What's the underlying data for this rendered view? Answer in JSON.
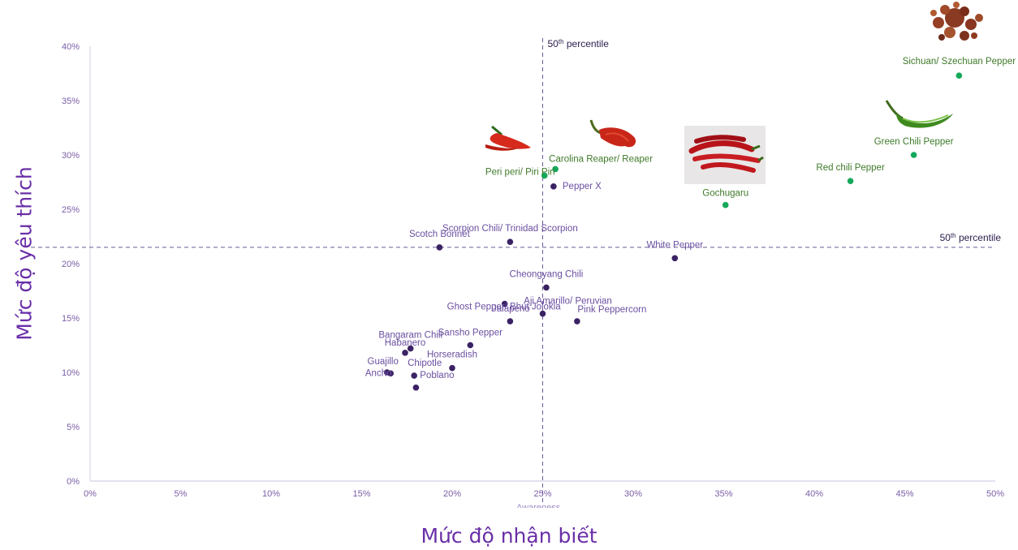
{
  "chart_data": {
    "type": "scatter",
    "xlabel": "Mức độ nhận biết",
    "xlabel_cut": "Awareness",
    "ylabel": "Mức độ yêu thích",
    "xlim": [
      0,
      50
    ],
    "ylim": [
      0,
      40
    ],
    "x_ticks": [
      "0%",
      "5%",
      "10%",
      "15%",
      "20%",
      "25%",
      "30%",
      "35%",
      "40%",
      "45%",
      "50%"
    ],
    "y_ticks": [
      "0%",
      "5%",
      "10%",
      "15%",
      "20%",
      "25%",
      "30%",
      "35%",
      "40%"
    ],
    "reference_lines": {
      "vertical_x": 25,
      "horizontal_y": 21.5,
      "label": "50th percentile"
    },
    "colors": {
      "purple": "#3a2264",
      "green": "#14a85a",
      "ref_line": "#6a5a9a"
    },
    "points": [
      {
        "label": "Sichuan/ Szechuan Pepper",
        "x": 48.0,
        "y": 37.3,
        "group": "green"
      },
      {
        "label": "Green Chili Pepper",
        "x": 45.5,
        "y": 30.0,
        "group": "green"
      },
      {
        "label": "Red chili Pepper",
        "x": 42.0,
        "y": 27.6,
        "group": "green"
      },
      {
        "label": "Gochugaru",
        "x": 35.1,
        "y": 25.4,
        "group": "green"
      },
      {
        "label": "Carolina Reaper/ Reaper",
        "x": 25.7,
        "y": 28.7,
        "group": "green"
      },
      {
        "label": "Peri peri/ Piri Piri",
        "x": 25.1,
        "y": 28.1,
        "group": "green"
      },
      {
        "label": "Pepper X",
        "x": 25.6,
        "y": 27.1,
        "group": "purple"
      },
      {
        "label": "Scorpion Chili/ Trinidad Scorpion",
        "x": 23.2,
        "y": 22.0,
        "group": "purple"
      },
      {
        "label": "Scotch Bonnet",
        "x": 19.3,
        "y": 21.5,
        "group": "purple"
      },
      {
        "label": "White Pepper",
        "x": 32.3,
        "y": 20.5,
        "group": "purple"
      },
      {
        "label": "Cheongyang Chili",
        "x": 25.2,
        "y": 17.8,
        "group": "purple"
      },
      {
        "label": "Ghost Pepper/ Bhut Jolokia",
        "x": 22.9,
        "y": 16.3,
        "group": "purple"
      },
      {
        "label": "Aji Amarillo/ Peruvian",
        "x": 25.0,
        "y": 15.4,
        "group": "purple"
      },
      {
        "label": "Jalapeno",
        "x": 23.2,
        "y": 14.7,
        "group": "purple"
      },
      {
        "label": "Pink Peppercorn",
        "x": 26.9,
        "y": 14.7,
        "group": "purple"
      },
      {
        "label": "Sansho Pepper",
        "x": 21.0,
        "y": 12.5,
        "group": "purple"
      },
      {
        "label": "Bangaram Chili",
        "x": 17.7,
        "y": 12.2,
        "group": "purple"
      },
      {
        "label": "Habanero",
        "x": 17.4,
        "y": 11.8,
        "group": "purple"
      },
      {
        "label": "Horseradish",
        "x": 20.0,
        "y": 10.4,
        "group": "purple"
      },
      {
        "label": "Guajillo",
        "x": 16.4,
        "y": 10.0,
        "group": "purple"
      },
      {
        "label": "Chipotle",
        "x": 17.9,
        "y": 9.7,
        "group": "purple"
      },
      {
        "label": "Poblano",
        "x": 18.0,
        "y": 8.6,
        "group": "purple"
      },
      {
        "label": "Ancho",
        "x": 16.6,
        "y": 9.9,
        "group": "purple"
      }
    ]
  }
}
